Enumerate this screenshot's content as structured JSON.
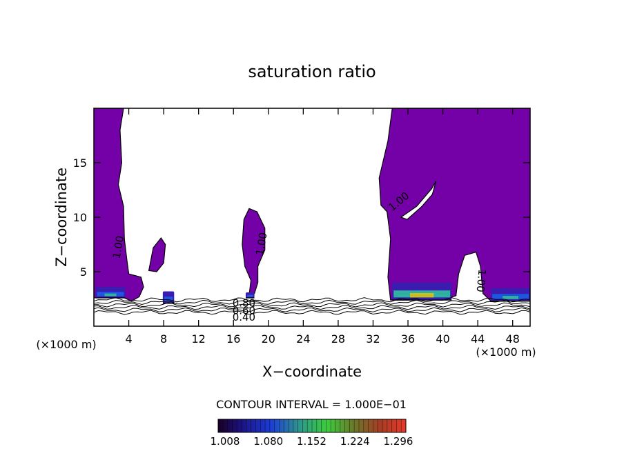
{
  "chart_data": {
    "type": "heatmap",
    "title": "saturation ratio",
    "xlabel": "X−coordinate",
    "ylabel": "Z−coordinate",
    "x_unit_left": "(×1000 m)",
    "x_unit_right": "(×1000 m)",
    "xlim": [
      0,
      50
    ],
    "ylim": [
      0,
      20
    ],
    "x_ticks": [
      4,
      8,
      12,
      16,
      20,
      24,
      28,
      32,
      36,
      40,
      44,
      48
    ],
    "y_ticks": [
      5,
      10,
      15
    ],
    "contour_interval_text": "CONTOUR INTERVAL = 1.000E−01",
    "colorbar_labels": [
      "1.008",
      "1.080",
      "1.152",
      "1.224",
      "1.296"
    ],
    "colorbar_range": [
      1.008,
      1.296
    ],
    "contour_labels": [
      {
        "text": "1.00",
        "x": 3.2,
        "y": 7.2,
        "angle": -80
      },
      {
        "text": "1.00",
        "x": 19.6,
        "y": 7.5,
        "angle": -80
      },
      {
        "text": "1.00",
        "x": 35.2,
        "y": 11.2,
        "angle": -40
      },
      {
        "text": "1.00",
        "x": 44.0,
        "y": 4.2,
        "angle": 95
      },
      {
        "text": "0.80",
        "x": 17.2,
        "y": 1.8,
        "angle": 0
      },
      {
        "text": "0.60",
        "x": 17.2,
        "y": 1.1,
        "angle": 0
      },
      {
        "text": "0.40",
        "x": 17.2,
        "y": 0.5,
        "angle": 0
      }
    ],
    "supersaturated_regions": [
      {
        "name": "left column",
        "outline": [
          [
            0,
            20
          ],
          [
            3.4,
            20
          ],
          [
            3.0,
            18
          ],
          [
            3.2,
            15
          ],
          [
            2.8,
            13
          ],
          [
            3.4,
            11
          ],
          [
            3.5,
            8
          ],
          [
            3.8,
            6
          ],
          [
            4.0,
            4.8
          ],
          [
            5.4,
            4.5
          ],
          [
            5.7,
            3.6
          ],
          [
            5.2,
            2.7
          ],
          [
            4.3,
            2.3
          ],
          [
            3.5,
            2.6
          ],
          [
            0,
            2.6
          ]
        ]
      },
      {
        "name": "small plume near x=7",
        "outline": [
          [
            6.3,
            5.1
          ],
          [
            6.8,
            7.2
          ],
          [
            7.7,
            8.1
          ],
          [
            8.2,
            7.5
          ],
          [
            8.0,
            5.8
          ],
          [
            7.2,
            5.0
          ]
        ]
      },
      {
        "name": "central plume",
        "outline": [
          [
            17.8,
            2.9
          ],
          [
            18.0,
            4.2
          ],
          [
            17.3,
            5.5
          ],
          [
            17.0,
            7.5
          ],
          [
            17.2,
            9.8
          ],
          [
            17.8,
            10.8
          ],
          [
            18.7,
            10.5
          ],
          [
            19.6,
            9.0
          ],
          [
            19.6,
            7.0
          ],
          [
            18.8,
            5.5
          ],
          [
            18.8,
            4.0
          ],
          [
            18.4,
            3.0
          ]
        ]
      },
      {
        "name": "right anvil",
        "outline": [
          [
            34.2,
            20
          ],
          [
            50,
            20
          ],
          [
            50,
            2.4
          ],
          [
            49.0,
            2.3
          ],
          [
            45.5,
            2.3
          ],
          [
            44.6,
            3.0
          ],
          [
            44.3,
            5.5
          ],
          [
            43.8,
            6.8
          ],
          [
            42.5,
            6.5
          ],
          [
            41.8,
            4.8
          ],
          [
            41.5,
            2.8
          ],
          [
            40.0,
            2.4
          ],
          [
            34.0,
            2.4
          ],
          [
            33.7,
            4.5
          ],
          [
            34.0,
            8.0
          ],
          [
            33.6,
            10.5
          ],
          [
            32.9,
            11.1
          ],
          [
            32.7,
            13.6
          ],
          [
            33.7,
            17.0
          ],
          [
            34.2,
            20
          ]
        ]
      },
      {
        "name": "right anvil notch",
        "outline": [
          [
            35.2,
            10.0
          ],
          [
            37.0,
            11.0
          ],
          [
            38.7,
            12.6
          ],
          [
            39.2,
            13.3
          ],
          [
            38.8,
            12.1
          ],
          [
            37.6,
            11.0
          ],
          [
            35.9,
            9.8
          ]
        ]
      }
    ],
    "high_value_patches": [
      {
        "x": [
          0.2,
          3.6
        ],
        "y": [
          2.6,
          3.6
        ],
        "max": 1.12
      },
      {
        "x": [
          7.9,
          9.2
        ],
        "y": [
          2.1,
          3.2
        ],
        "max": 1.1
      },
      {
        "x": [
          17.4,
          18.4
        ],
        "y": [
          2.6,
          3.1
        ],
        "max": 1.1
      },
      {
        "x": [
          34.2,
          41.0
        ],
        "y": [
          2.4,
          4.0
        ],
        "max": 1.23
      },
      {
        "x": [
          45.5,
          50.0
        ],
        "y": [
          2.3,
          3.5
        ],
        "max": 1.12
      }
    ],
    "dry_layer_contours": [
      0.4,
      0.5,
      0.6,
      0.7,
      0.8,
      0.9
    ]
  }
}
